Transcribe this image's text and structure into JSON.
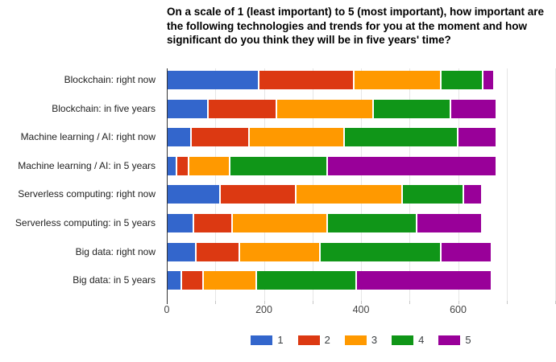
{
  "chart_data": {
    "type": "bar",
    "stacked": true,
    "orientation": "horizontal",
    "title": "On a scale of 1 (least important) to 5 (most important), how important are the following technologies and trends for you at the moment and how significant do you think they will be in five years' time?",
    "categories": [
      "Blockchain: right now",
      "Blockchain: in five years",
      "Machine learning / AI: right now",
      "Machine learning / AI: in 5 years",
      "Serverless computing: right now",
      "Serverless computing: in 5 years",
      "Big data: right now",
      "Big data: in 5 years"
    ],
    "series": [
      {
        "name": "1",
        "color": "#3366CC",
        "values": [
          190,
          85,
          50,
          20,
          110,
          55,
          60,
          30
        ]
      },
      {
        "name": "2",
        "color": "#DC3912",
        "values": [
          195,
          140,
          120,
          25,
          155,
          80,
          90,
          45
        ]
      },
      {
        "name": "3",
        "color": "#FF9900",
        "values": [
          180,
          200,
          195,
          85,
          220,
          195,
          165,
          110
        ]
      },
      {
        "name": "4",
        "color": "#109618",
        "values": [
          85,
          160,
          235,
          200,
          125,
          185,
          250,
          205
        ]
      },
      {
        "name": "5",
        "color": "#990099",
        "values": [
          20,
          90,
          75,
          345,
          35,
          130,
          100,
          275
        ]
      }
    ],
    "xlabel": "",
    "ylabel": "",
    "xlim": [
      0,
      800
    ],
    "x_tick_labels": [
      0,
      200,
      400,
      600
    ],
    "gridline_step": 100,
    "grid": true,
    "legend_position": "bottom",
    "background_color": "#ffffff",
    "gridline_color": "#e6e6e6",
    "axis_color": "#333333",
    "label_color": "#222222",
    "tick_label_color": "#444444"
  }
}
